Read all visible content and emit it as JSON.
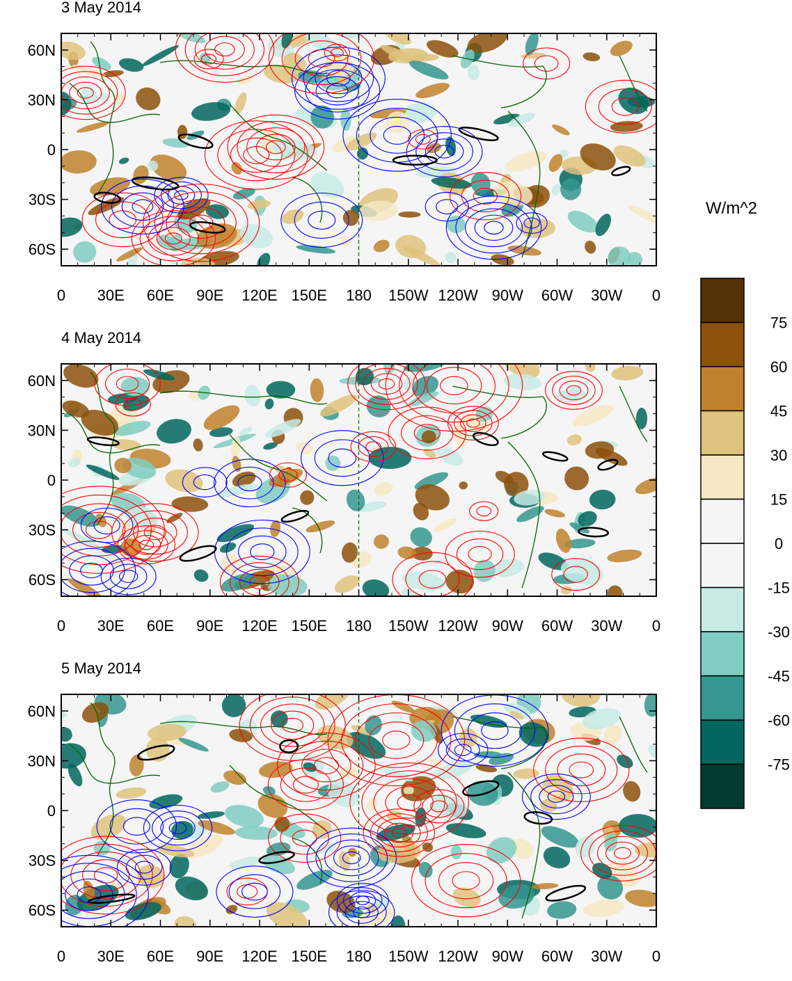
{
  "panels": [
    {
      "title": "3 May 2014"
    },
    {
      "title": "4 May 2014"
    },
    {
      "title": "5 May 2014"
    }
  ],
  "lat_labels": [
    "60N",
    "30N",
    "0",
    "30S",
    "60S"
  ],
  "lon_labels": [
    "0",
    "30E",
    "60E",
    "90E",
    "120E",
    "150E",
    "180",
    "150W",
    "120W",
    "90W",
    "60W",
    "30W",
    "0"
  ],
  "lat_values": [
    60,
    30,
    0,
    -30,
    -60
  ],
  "lon_values": [
    0,
    30,
    60,
    90,
    120,
    150,
    180,
    210,
    240,
    270,
    300,
    330,
    360
  ],
  "map_extent": {
    "lon": [
      0,
      360
    ],
    "lat": [
      -70,
      70
    ]
  },
  "colorbar": {
    "units": "W/m^2",
    "levels": [
      "75",
      "60",
      "45",
      "30",
      "15",
      "0",
      "-15",
      "-30",
      "-45",
      "-60",
      "-75"
    ],
    "colors": [
      "#543005",
      "#8c510a",
      "#bf812d",
      "#dfc27d",
      "#f6e8c3",
      "#f5f5f5",
      "#f5f5f5",
      "#c7eae5",
      "#80cdc1",
      "#35978f",
      "#01665e",
      "#003c30"
    ]
  },
  "contour_colors": {
    "positive": "#ff0000",
    "negative": "#0000ff",
    "highlight": "#000000",
    "coast": "#006400"
  }
}
